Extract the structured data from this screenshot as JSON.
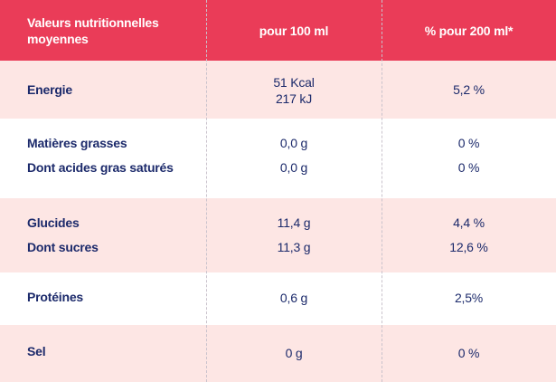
{
  "header": {
    "col1_line1": "Valeurs nutritionnelles",
    "col1_line2": "moyennes",
    "col2": "pour 100 ml",
    "col3": "% pour 200 ml*"
  },
  "rows": {
    "energie": {
      "label": "Energie",
      "per100_line1": "51 Kcal",
      "per100_line2": "217 kJ",
      "pct": "5,2 %"
    },
    "matieres": {
      "label": "Matières grasses",
      "per100": "0,0 g",
      "pct": "0 %"
    },
    "satures": {
      "label": "Dont acides gras saturés",
      "per100": "0,0 g",
      "pct": "0 %"
    },
    "glucides": {
      "label": "Glucides",
      "per100": "11,4 g",
      "pct": "4,4 %"
    },
    "sucres": {
      "label": "Dont sucres",
      "per100": "11,3 g",
      "pct": "12,6 %"
    },
    "proteines": {
      "label": "Protéines",
      "per100": "0,6 g",
      "pct": "2,5%"
    },
    "sel": {
      "label": "Sel",
      "per100": "0 g",
      "pct": "0 %"
    }
  },
  "colors": {
    "header_bg": "#ea3c58",
    "stripe_bg": "#fde6e4",
    "text": "#1c2a6b"
  }
}
